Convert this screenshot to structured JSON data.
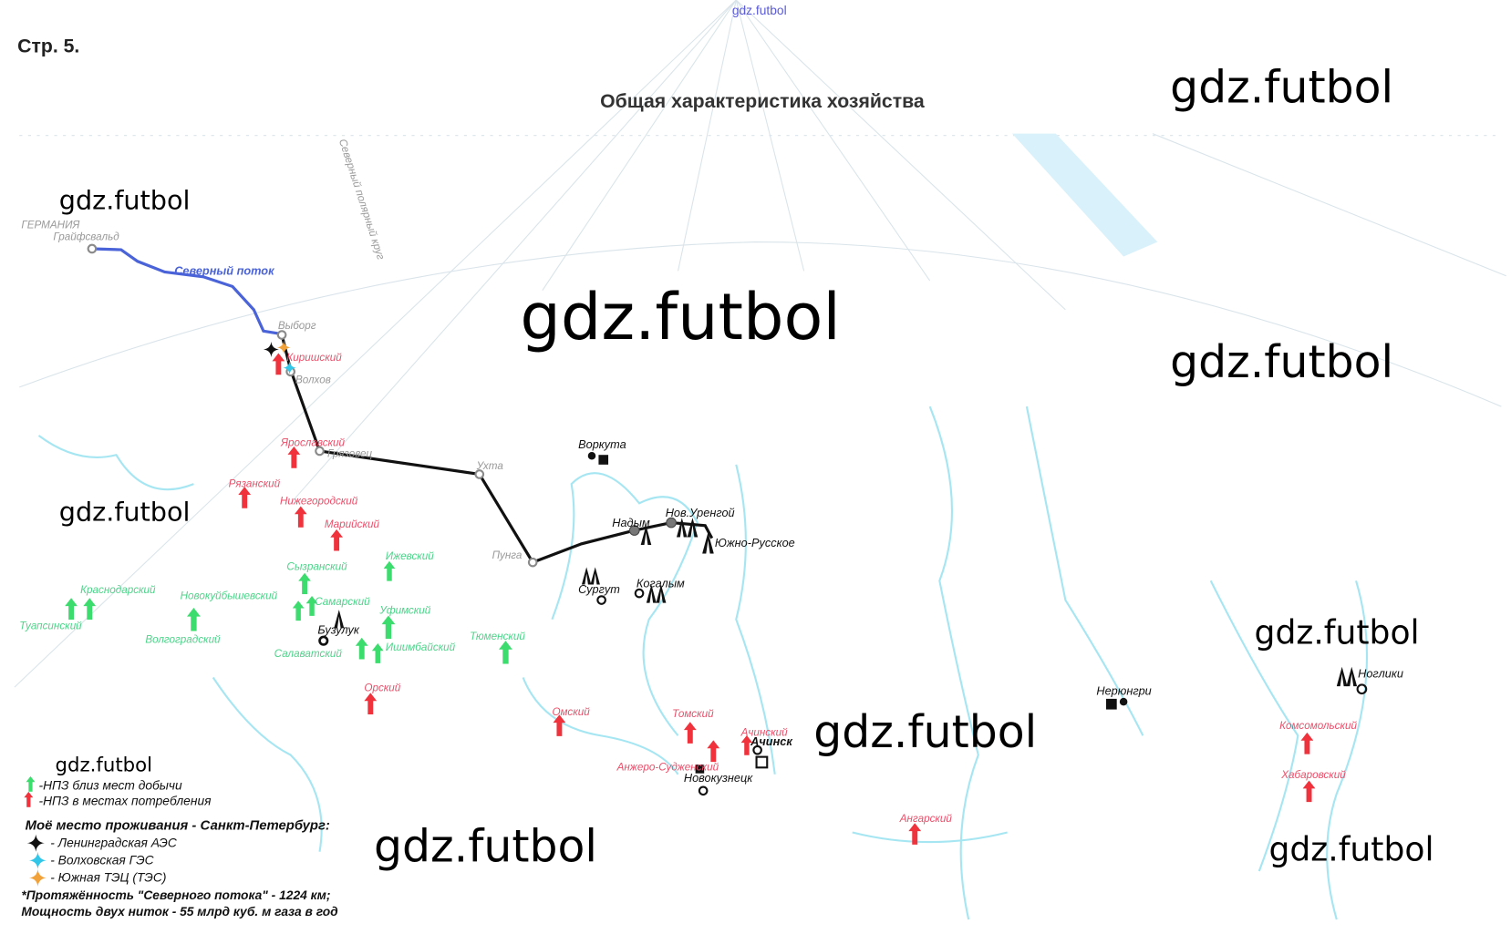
{
  "header": {
    "site_tag": "gdz.futbol",
    "page_label": "Стр. 5.",
    "title": "Общая характеристика хозяйства"
  },
  "watermark": "gdz.futbol",
  "map": {
    "arctic_circle_label": "Северный полярный круг",
    "country_label": "ГЕРМАНИЯ",
    "pipeline": {
      "name": "Северный поток",
      "color": "#4a63d8",
      "nodes": [
        "Грайфсвальд",
        "Выборг",
        "Волхов",
        "Грязовец",
        "Ухта",
        "Пунга"
      ]
    },
    "cities": [
      "Воркута",
      "Надым",
      "Нов.Уренгой",
      "Южно-Русское",
      "Сургут",
      "Когалым",
      "Бузулук",
      "Ачинск",
      "Новокузнецк",
      "Нерюнгри",
      "Ноглики"
    ],
    "refineries_consumption": [
      "Киришский",
      "Ярославский",
      "Рязанский",
      "Нижегородский",
      "Марийский",
      "Орский",
      "Омский",
      "Томский",
      "Ачинский",
      "Анжеро-Судженский",
      "Ангарский",
      "Комсомольский",
      "Хабаровский"
    ],
    "refineries_production": [
      "Краснодарский",
      "Туапсинский",
      "Новокуйбышевский",
      "Волгоградский",
      "Сызранский",
      "Самарский",
      "Салаватский",
      "Ишимбайский",
      "Уфимский",
      "Ижевский",
      "Тюменский"
    ],
    "colors": {
      "consumption": "#f0323c",
      "production": "#3ddc6e",
      "pipeline": "#111111",
      "aes": "#111111",
      "ges": "#33c6e8",
      "tes": "#f2a23a"
    }
  },
  "legend": {
    "production": "-НПЗ близ мест добычи",
    "consumption": "-НПЗ в местах потребления",
    "home_title": "Моё место проживания - Санкт-Петербург:",
    "aes": "- Ленинградская АЭС",
    "ges": "- Волховская ГЭС",
    "tes": "- Южная ТЭЦ (ТЭС)",
    "note1": "*Протяжённость \"Северного потока\" - 1224 км;",
    "note2": "Мощность двух ниток - 55 млрд куб. м газа в год"
  }
}
